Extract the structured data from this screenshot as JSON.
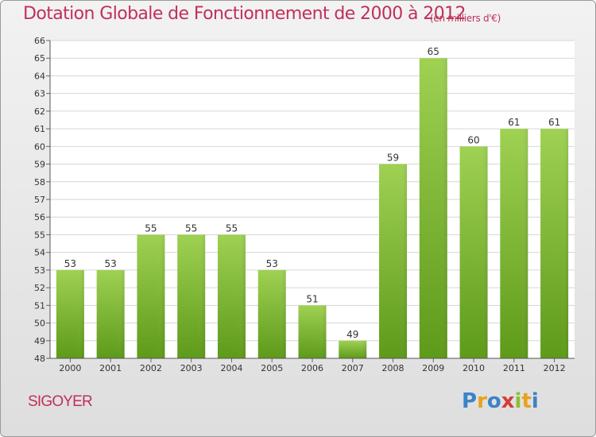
{
  "chart_data": {
    "type": "bar",
    "title": "Dotation Globale de Fonctionnement de 2000 à 2012",
    "unit_note": "(en milliers d'€)",
    "xlabel": "",
    "ylabel": "",
    "categories": [
      "2000",
      "2001",
      "2002",
      "2003",
      "2004",
      "2005",
      "2006",
      "2007",
      "2008",
      "2009",
      "2010",
      "2011",
      "2012"
    ],
    "values": [
      53,
      53,
      55,
      55,
      55,
      53,
      51,
      49,
      59,
      65,
      60,
      61,
      61
    ],
    "data_labels": [
      "53",
      "53",
      "55",
      "55",
      "55",
      "53",
      "51",
      "49",
      "59",
      "65",
      "60",
      "61",
      "61"
    ],
    "ylim": [
      48,
      66
    ],
    "yticks": [
      "48",
      "49",
      "50",
      "51",
      "52",
      "53",
      "54",
      "55",
      "56",
      "57",
      "58",
      "59",
      "60",
      "61",
      "62",
      "63",
      "64",
      "65",
      "66"
    ],
    "grid": true,
    "legend": "none",
    "bar_color": "#7ab530",
    "title_color": "#c0305a"
  },
  "commune_name": "SIGOYER",
  "logo": {
    "text": "Proxiti",
    "letters": [
      "P",
      "r",
      "o",
      "x",
      "i",
      "t",
      "i"
    ],
    "colors": [
      "#3b83c8",
      "#e8a21c",
      "#3b83c8",
      "#d43c3c",
      "#8fbf2a",
      "#e8a21c",
      "#3b83c8"
    ]
  }
}
